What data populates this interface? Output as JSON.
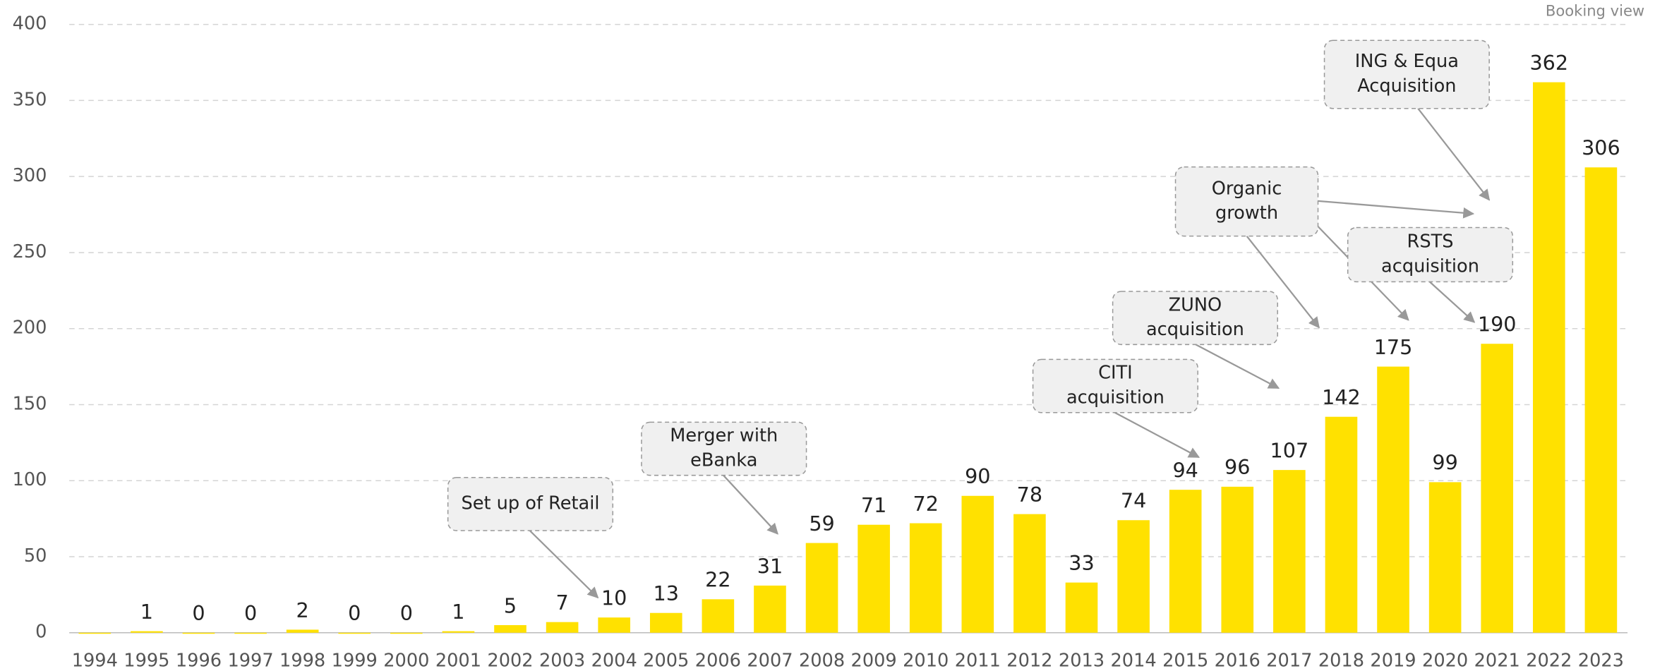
{
  "chart_data": {
    "type": "bar",
    "subtitle": "Booking view",
    "categories": [
      "1994",
      "1995",
      "1996",
      "1997",
      "1998",
      "1999",
      "2000",
      "2001",
      "2002",
      "2003",
      "2004",
      "2005",
      "2006",
      "2007",
      "2008",
      "2009",
      "2010",
      "2011",
      "2012",
      "2013",
      "2014",
      "2015",
      "2016",
      "2017",
      "2018",
      "2019",
      "2020",
      "2021",
      "2022",
      "2023"
    ],
    "values": [
      0,
      1,
      0,
      0,
      2,
      0,
      0,
      1,
      5,
      7,
      10,
      13,
      22,
      31,
      59,
      71,
      72,
      90,
      78,
      33,
      74,
      94,
      96,
      107,
      142,
      175,
      99,
      190,
      362,
      306
    ],
    "value_labels": [
      null,
      1,
      0,
      0,
      2,
      0,
      0,
      1,
      5,
      7,
      10,
      13,
      22,
      31,
      59,
      71,
      72,
      90,
      78,
      33,
      74,
      94,
      96,
      107,
      142,
      175,
      99,
      190,
      362,
      306
    ],
    "color": "#ffe100",
    "ylim": [
      0,
      400
    ],
    "yticks": [
      0,
      50,
      100,
      150,
      200,
      250,
      300,
      350,
      400
    ],
    "grid": true,
    "annotations": [
      {
        "lines": [
          "Set up of Retail"
        ]
      },
      {
        "lines": [
          "Merger with",
          "eBanka"
        ]
      },
      {
        "lines": [
          "CITI",
          "acquisition"
        ]
      },
      {
        "lines": [
          "ZUNO",
          "acquisition"
        ]
      },
      {
        "lines": [
          "Organic",
          "growth"
        ]
      },
      {
        "lines": [
          "RSTS",
          "acquisition"
        ]
      },
      {
        "lines": [
          "ING & Equa",
          "Acquisition"
        ]
      }
    ]
  }
}
